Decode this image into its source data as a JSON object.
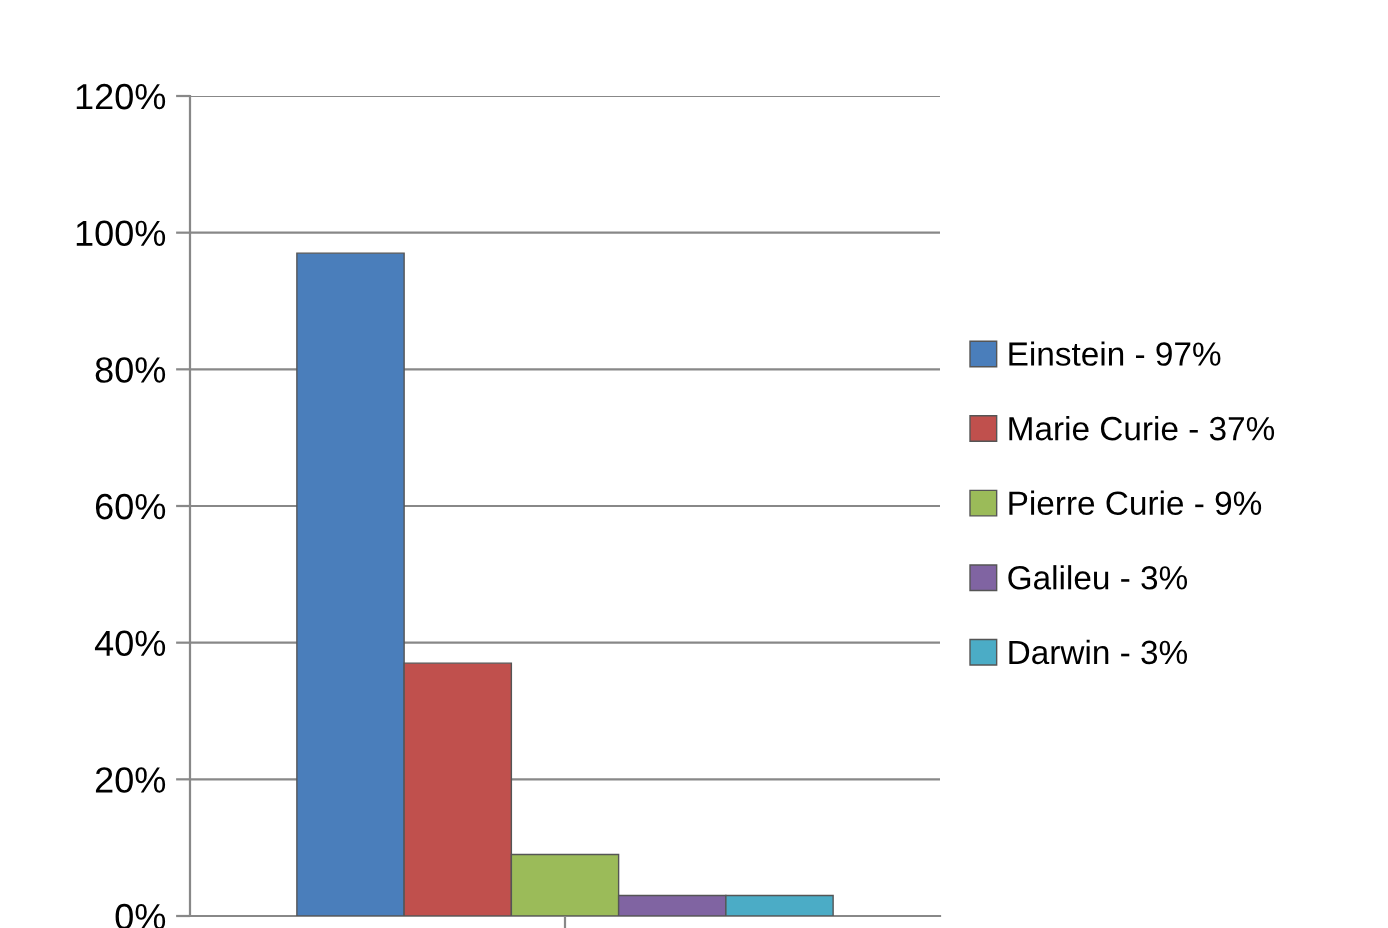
{
  "chart_data": {
    "type": "bar",
    "categories": [
      null
    ],
    "series": [
      {
        "name": "Einstein - 97%",
        "color": "#4a7ebb",
        "values": [
          97
        ]
      },
      {
        "name": "Marie Curie - 37%",
        "color": "#c0504d",
        "values": [
          37
        ]
      },
      {
        "name": "Pierre Curie - 9%",
        "color": "#9bbb59",
        "values": [
          9
        ]
      },
      {
        "name": "Galileu - 3%",
        "color": "#8064a2",
        "values": [
          3
        ]
      },
      {
        "name": "Darwin - 3%",
        "color": "#4bacc6",
        "values": [
          3
        ]
      }
    ],
    "ylim": [
      0,
      120
    ],
    "yticks": [
      {
        "value": 0,
        "label": "0%"
      },
      {
        "value": 20,
        "label": "20%"
      },
      {
        "value": 40,
        "label": "40%"
      },
      {
        "value": 60,
        "label": "60%"
      },
      {
        "value": 80,
        "label": "80%"
      },
      {
        "value": 100,
        "label": "100%"
      },
      {
        "value": 120,
        "label": "120%"
      }
    ],
    "grid": "y",
    "legend": "right"
  }
}
